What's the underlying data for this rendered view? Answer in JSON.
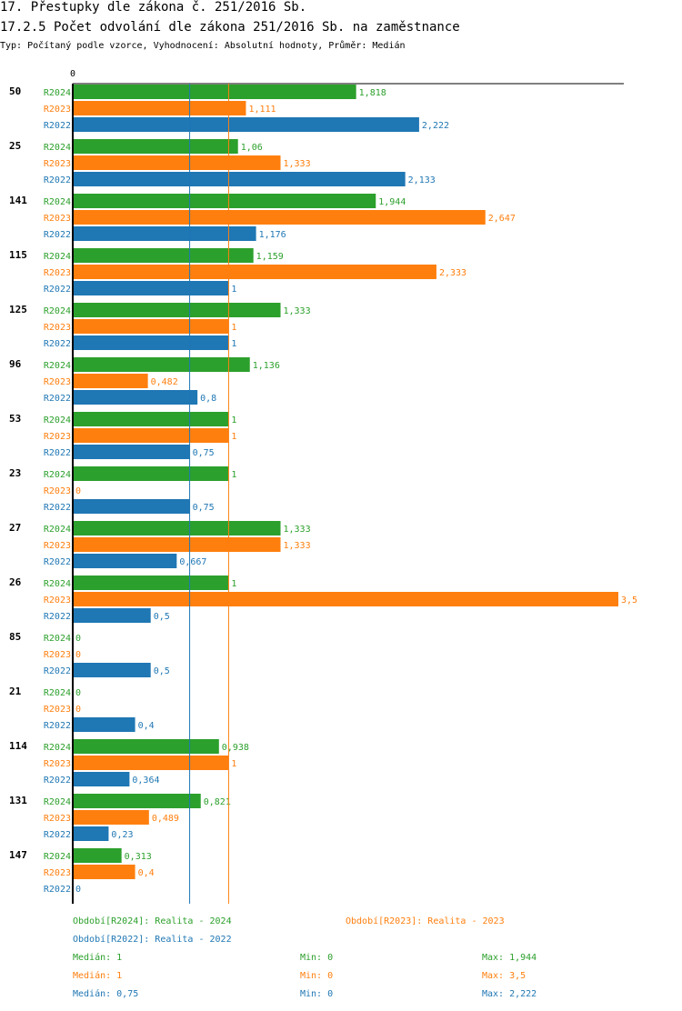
{
  "header": {
    "title": "17. Přestupky dle zákona č. 251/2016 Sb.",
    "subtitle": "17.2.5 Počet odvolání dle zákona 251/2016 Sb. na zaměstnance",
    "type_line": "Typ: Počítaný podle vzorce, Vyhodnocení: Absolutní hodnoty, Průměr: Medián"
  },
  "chart_data": {
    "type": "bar",
    "orientation": "horizontal",
    "x_axis_zero_label": "0",
    "xlim": [
      0,
      3.5
    ],
    "categories": [
      "50",
      "25",
      "141",
      "115",
      "125",
      "96",
      "53",
      "23",
      "27",
      "26",
      "85",
      "21",
      "114",
      "131",
      "147"
    ],
    "series": [
      {
        "name": "R2024",
        "color": "#2ca02c",
        "values": [
          1.818,
          1.06,
          1.944,
          1.159,
          1.333,
          1.136,
          1,
          1,
          1.333,
          1,
          0,
          0,
          0.938,
          0.821,
          0.313
        ],
        "labels": [
          "1,818",
          "1,06",
          "1,944",
          "1,159",
          "1,333",
          "1,136",
          "1",
          "1",
          "1,333",
          "1",
          "0",
          "0",
          "0,938",
          "0,821",
          "0,313"
        ]
      },
      {
        "name": "R2023",
        "color": "#ff7f0e",
        "values": [
          1.111,
          1.333,
          2.647,
          2.333,
          1,
          0.482,
          1,
          0,
          1.333,
          3.5,
          0,
          0,
          1,
          0.489,
          0.4
        ],
        "labels": [
          "1,111",
          "1,333",
          "2,647",
          "2,333",
          "1",
          "0,482",
          "1",
          "0",
          "1,333",
          "3,5",
          "0",
          "0",
          "1",
          "0,489",
          "0,4"
        ]
      },
      {
        "name": "R2022",
        "color": "#1f77b4",
        "values": [
          2.222,
          2.133,
          1.176,
          1,
          1,
          0.8,
          0.75,
          0.75,
          0.667,
          0.5,
          0.5,
          0.4,
          0.364,
          0.23,
          0
        ],
        "labels": [
          "2,222",
          "2,133",
          "1,176",
          "1",
          "1",
          "0,8",
          "0,75",
          "0,75",
          "0,667",
          "0,5",
          "0,5",
          "0,4",
          "0,364",
          "0,23",
          "0"
        ]
      }
    ],
    "median_lines": [
      {
        "series": "R2022",
        "value": 0.75,
        "color": "#1f77b4"
      },
      {
        "series": "R2023",
        "value": 1,
        "color": "#ff7f0e"
      }
    ]
  },
  "legend": {
    "r2024": "Období[R2024]: Realita - 2024",
    "r2023": "Období[R2023]: Realita - 2023",
    "r2022": "Období[R2022]: Realita - 2022",
    "stats": [
      {
        "median": "Medián: 1",
        "min": "Min: 0",
        "max": "Max: 1,944",
        "color": "#2ca02c"
      },
      {
        "median": "Medián: 1",
        "min": "Min: 0",
        "max": "Max: 3,5",
        "color": "#ff7f0e"
      },
      {
        "median": "Medián: 0,75",
        "min": "Min: 0",
        "max": "Max: 2,222",
        "color": "#1f77b4"
      }
    ]
  }
}
